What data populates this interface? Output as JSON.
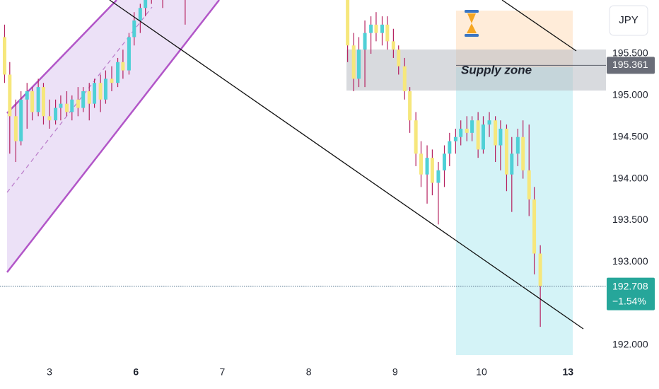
{
  "chart_data": {
    "type": "candlestick",
    "currency": "JPY",
    "zone_label": "Supply zone",
    "entry_price": 195.361,
    "last_price": 192.708,
    "change": {
      "value": -1.54,
      "label": "−1.54%"
    },
    "up_color": "#4fd0d6",
    "down_color": "#f6e77c",
    "wick_color": "#b5215f",
    "xlim": [
      -0.573,
      6.44
    ],
    "ylim": [
      191.728,
      196.146
    ],
    "xticks": [
      {
        "value": 0,
        "label": "3"
      },
      {
        "value": 1,
        "label": "6",
        "bold": true
      },
      {
        "value": 2,
        "label": "7"
      },
      {
        "value": 3,
        "label": "8"
      },
      {
        "value": 4,
        "label": "9"
      },
      {
        "value": 5,
        "label": "10"
      },
      {
        "value": 6,
        "label": "13",
        "bold": true
      }
    ],
    "yticks": [
      {
        "value": 195.5,
        "label": "195.500"
      },
      {
        "value": 195,
        "label": "195.000"
      },
      {
        "value": 194.5,
        "label": "194.500"
      },
      {
        "value": 194,
        "label": "194.000"
      },
      {
        "value": 193.5,
        "label": "193.500"
      },
      {
        "value": 193,
        "label": "193.000"
      },
      {
        "value": 192,
        "label": "192.000"
      }
    ],
    "x": [
      -0.52,
      -0.46,
      -0.39,
      -0.33,
      -0.26,
      -0.2,
      -0.13,
      -0.07,
      0,
      0.07,
      0.13,
      0.2,
      0.26,
      0.33,
      0.39,
      0.46,
      0.52,
      0.59,
      0.65,
      0.72,
      0.79,
      0.85,
      0.92,
      0.98,
      1.05,
      1.11,
      1.18,
      1.31,
      1.57,
      3.45,
      3.52,
      3.58,
      3.65,
      3.72,
      3.78,
      3.85,
      3.91,
      3.98,
      4.04,
      4.11,
      4.17,
      4.24,
      4.3,
      4.37,
      4.43,
      4.5,
      4.57,
      4.63,
      4.7,
      4.76,
      4.83,
      4.89,
      4.96,
      5.02,
      5.09,
      5.16,
      5.22,
      5.29,
      5.35,
      5.42,
      5.48,
      5.55,
      5.61,
      5.68
    ],
    "open": [
      195.7,
      195.25,
      194.75,
      194.45,
      194.95,
      195.05,
      194.8,
      195.1,
      194.75,
      194.7,
      194.85,
      194.9,
      194.8,
      194.95,
      194.85,
      195.05,
      194.9,
      195.15,
      194.95,
      195.2,
      195.15,
      195.4,
      195.3,
      195.7,
      195.9,
      196.05,
      196.25,
      196.35,
      196.4,
      196.2,
      195.6,
      195.2,
      195.55,
      195.75,
      195.85,
      195.75,
      195.85,
      195.65,
      195.55,
      195.35,
      195.05,
      194.7,
      194.3,
      194.05,
      194.25,
      193.95,
      194.1,
      194.3,
      194.45,
      194.5,
      194.6,
      194.55,
      194.7,
      194.35,
      194.65,
      194.7,
      194.4,
      194.6,
      194.05,
      194.3,
      194.5,
      194.1,
      193.75,
      193.1
    ],
    "high": [
      195.85,
      195.4,
      194.95,
      195.05,
      195.15,
      195.1,
      195.2,
      195.15,
      194.95,
      194.95,
      195,
      195.05,
      195,
      195.1,
      195.1,
      195.15,
      195.2,
      195.25,
      195.3,
      195.35,
      195.45,
      195.55,
      195.75,
      196,
      196.1,
      196.3,
      196.4,
      196.5,
      196.6,
      196.3,
      195.75,
      195.7,
      195.9,
      195.95,
      196,
      195.95,
      195.95,
      195.8,
      195.6,
      195.45,
      195.1,
      194.8,
      194.45,
      194.4,
      194.35,
      194.2,
      194.4,
      194.55,
      194.6,
      194.7,
      194.75,
      194.75,
      194.8,
      194.75,
      194.8,
      194.75,
      194.7,
      194.65,
      194.5,
      194.6,
      194.7,
      194.65,
      193.9,
      193.2
    ],
    "low": [
      195.15,
      194.3,
      194.2,
      194.4,
      194.6,
      194.7,
      194.75,
      194.65,
      194.6,
      194.65,
      194.7,
      194.75,
      194.7,
      194.75,
      194.8,
      194.7,
      194.85,
      194.8,
      194.9,
      195.05,
      195.1,
      195.2,
      195.25,
      195.6,
      195.75,
      195.95,
      196.1,
      196.05,
      195.85,
      195.4,
      195.05,
      195.1,
      195.1,
      195.5,
      195.65,
      195.6,
      195.55,
      195.45,
      195.25,
      194.95,
      194.55,
      194.15,
      193.9,
      193.7,
      193.8,
      193.45,
      193.9,
      194.15,
      194.3,
      194.4,
      194.45,
      194.45,
      194.25,
      194.3,
      194.5,
      194.2,
      194.1,
      193.85,
      193.6,
      194.15,
      194,
      193.55,
      192.85,
      192.22
    ],
    "close": [
      195.25,
      194.75,
      194.45,
      194.95,
      195.05,
      194.8,
      195.1,
      194.75,
      194.7,
      194.85,
      194.9,
      194.8,
      194.95,
      194.85,
      195.05,
      194.9,
      195.15,
      194.95,
      195.2,
      195.15,
      195.4,
      195.3,
      195.7,
      195.9,
      196.05,
      196.25,
      196.35,
      196.2,
      196.3,
      195.6,
      195.2,
      195.55,
      195.75,
      195.85,
      195.75,
      195.85,
      195.65,
      195.55,
      195.35,
      195.05,
      194.7,
      194.3,
      194.05,
      194.25,
      193.95,
      194.1,
      194.3,
      194.45,
      194.5,
      194.6,
      194.55,
      194.7,
      194.35,
      194.65,
      194.7,
      194.4,
      194.6,
      194.05,
      194.3,
      194.5,
      194.1,
      193.75,
      193.1,
      192.708
    ]
  }
}
